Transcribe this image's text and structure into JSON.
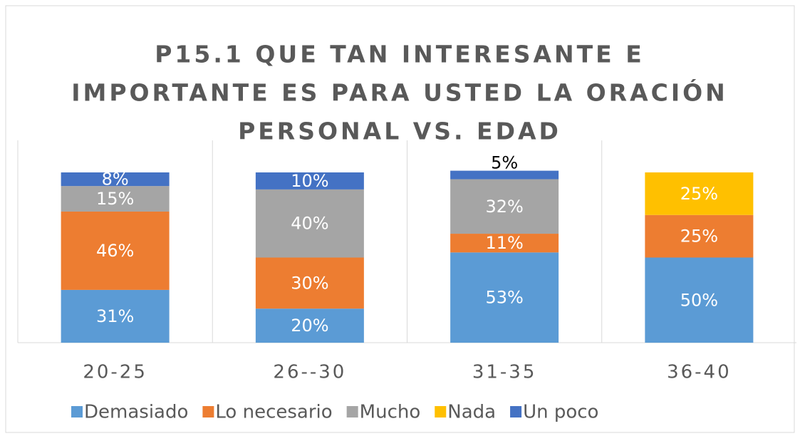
{
  "chart_data": {
    "type": "stacked_bar",
    "title": [
      "P15.1 QUE TAN INTERESANTE E",
      "IMPORTANTE ES PARA USTED LA ORACIÓN",
      "PERSONAL  VS.  EDAD"
    ],
    "categories": [
      "20-25",
      "26--30",
      "31-35",
      "36-40"
    ],
    "series": [
      {
        "name": "Demasiado",
        "color": "#5b9bd5",
        "values": [
          31,
          20,
          53,
          50
        ],
        "value_labels": [
          "31%",
          "20%",
          "53%",
          "50%"
        ]
      },
      {
        "name": "Lo necesario",
        "color": "#ed7d31",
        "values": [
          46,
          30,
          11,
          25
        ],
        "value_labels": [
          "46%",
          "30%",
          "11%",
          "25%"
        ]
      },
      {
        "name": "Mucho",
        "color": "#a5a5a5",
        "values": [
          15,
          40,
          32,
          null
        ],
        "value_labels": [
          "15%",
          "40%",
          "32%",
          null
        ]
      },
      {
        "name": "Nada",
        "color": "#ffc000",
        "values": [
          null,
          null,
          null,
          25
        ],
        "value_labels": [
          null,
          null,
          null,
          "25%"
        ]
      },
      {
        "name": "Un poco",
        "color": "#4472c4",
        "values": [
          8,
          10,
          5,
          null
        ],
        "value_labels": [
          "8%",
          "10%",
          "5%",
          null
        ]
      }
    ],
    "ylim": [
      0,
      100
    ],
    "legend": "bottom"
  }
}
